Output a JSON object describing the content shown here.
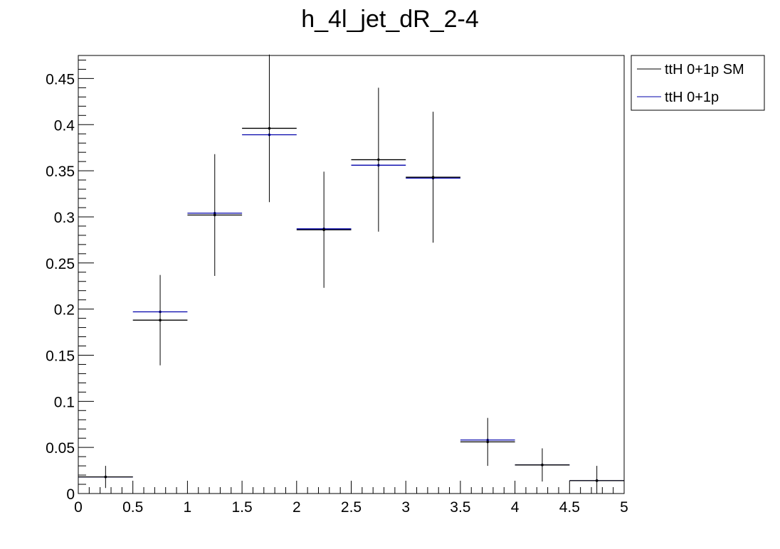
{
  "chart_data": {
    "type": "scatter",
    "title": "h_4l_jet_dR_2-4",
    "xlabel": "",
    "ylabel": "",
    "xlim": [
      0,
      5
    ],
    "ylim": [
      0,
      0.475
    ],
    "x_ticks": [
      {
        "value": 0,
        "label": "0"
      },
      {
        "value": 0.5,
        "label": "0.5"
      },
      {
        "value": 1,
        "label": "1"
      },
      {
        "value": 1.5,
        "label": "1.5"
      },
      {
        "value": 2,
        "label": "2"
      },
      {
        "value": 2.5,
        "label": "2.5"
      },
      {
        "value": 3,
        "label": "3"
      },
      {
        "value": 3.5,
        "label": "3.5"
      },
      {
        "value": 4,
        "label": "4"
      },
      {
        "value": 4.5,
        "label": "4.5"
      },
      {
        "value": 5,
        "label": "5"
      }
    ],
    "y_ticks": [
      {
        "value": 0,
        "label": "0"
      },
      {
        "value": 0.05,
        "label": "0.05"
      },
      {
        "value": 0.1,
        "label": "0.1"
      },
      {
        "value": 0.15,
        "label": "0.15"
      },
      {
        "value": 0.2,
        "label": "0.2"
      },
      {
        "value": 0.25,
        "label": "0.25"
      },
      {
        "value": 0.3,
        "label": "0.3"
      },
      {
        "value": 0.35,
        "label": "0.35"
      },
      {
        "value": 0.4,
        "label": "0.4"
      },
      {
        "value": 0.45,
        "label": "0.45"
      }
    ],
    "grid": false,
    "legend_position": "top-right-outside",
    "bin_edges": [
      0,
      0.5,
      1,
      1.5,
      2,
      2.5,
      3,
      3.5,
      4,
      4.5,
      5
    ],
    "series": [
      {
        "name": "ttH 0+1p SM",
        "color": "#000000",
        "values": [
          0.018,
          0.188,
          0.302,
          0.396,
          0.286,
          0.362,
          0.343,
          0.056,
          0.031,
          0.014
        ],
        "errors": [
          0.012,
          0.049,
          0.066,
          0.08,
          0.063,
          0.078,
          0.071,
          0.026,
          0.018,
          0.016
        ]
      },
      {
        "name": "ttH 0+1p",
        "color": "#0000aa",
        "values": [
          0.018,
          0.197,
          0.304,
          0.389,
          0.287,
          0.356,
          0.342,
          0.058,
          0.031,
          0.014
        ],
        "errors": [
          0.0,
          0.0,
          0.0,
          0.0,
          0.0,
          0.0,
          0.0,
          0.0,
          0.0,
          0.0
        ]
      }
    ]
  }
}
